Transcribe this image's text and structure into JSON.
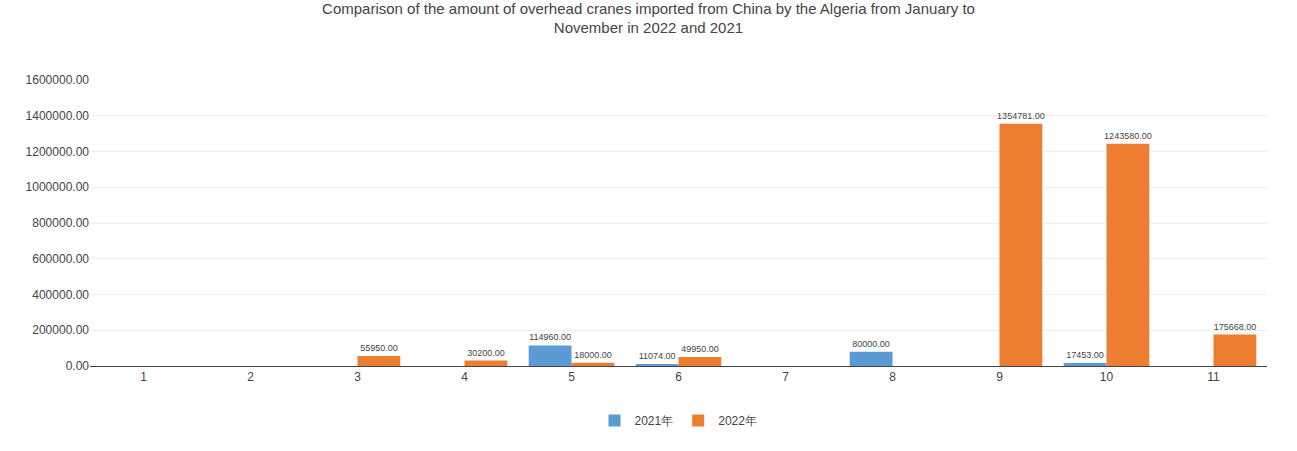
{
  "chart_data": {
    "type": "bar",
    "title": "Comparison of the amount of overhead cranes imported from China by the Algeria from January to\nNovember in 2022 and 2021",
    "categories": [
      "1",
      "2",
      "3",
      "4",
      "5",
      "6",
      "7",
      "8",
      "9",
      "10",
      "11"
    ],
    "series": [
      {
        "name": "2021年",
        "color": "#5B9BD5",
        "values": [
          0,
          0,
          0,
          0,
          114960,
          11074,
          0,
          80000,
          0,
          17453,
          0
        ],
        "value_labels": [
          null,
          null,
          null,
          null,
          "114960.00",
          "11074.00",
          null,
          "80000.00",
          null,
          "17453.00",
          null
        ]
      },
      {
        "name": "2022年",
        "color": "#ED7D31",
        "values": [
          0,
          0,
          55950,
          30200,
          18000,
          49950,
          0,
          0,
          1354781,
          1243580,
          175668
        ],
        "value_labels": [
          null,
          null,
          "55950.00",
          "30200.00",
          "18000.00",
          "49950.00",
          null,
          null,
          "1354781.00",
          "1243580.00",
          "175668.00"
        ]
      }
    ],
    "ylim": [
      0,
      1600000
    ],
    "yticks": [
      {
        "value": 0,
        "label": "0.00"
      },
      {
        "value": 200000,
        "label": "200000.00"
      },
      {
        "value": 400000,
        "label": "400000.00"
      },
      {
        "value": 600000,
        "label": "600000.00"
      },
      {
        "value": 800000,
        "label": "800000.00"
      },
      {
        "value": 1000000,
        "label": "1000000.00"
      },
      {
        "value": 1200000,
        "label": "1200000.00"
      },
      {
        "value": 1400000,
        "label": "1400000.00"
      },
      {
        "value": 1600000,
        "label": "1600000.00"
      }
    ],
    "grid": true,
    "legend": "bottom",
    "data_labels": true
  }
}
